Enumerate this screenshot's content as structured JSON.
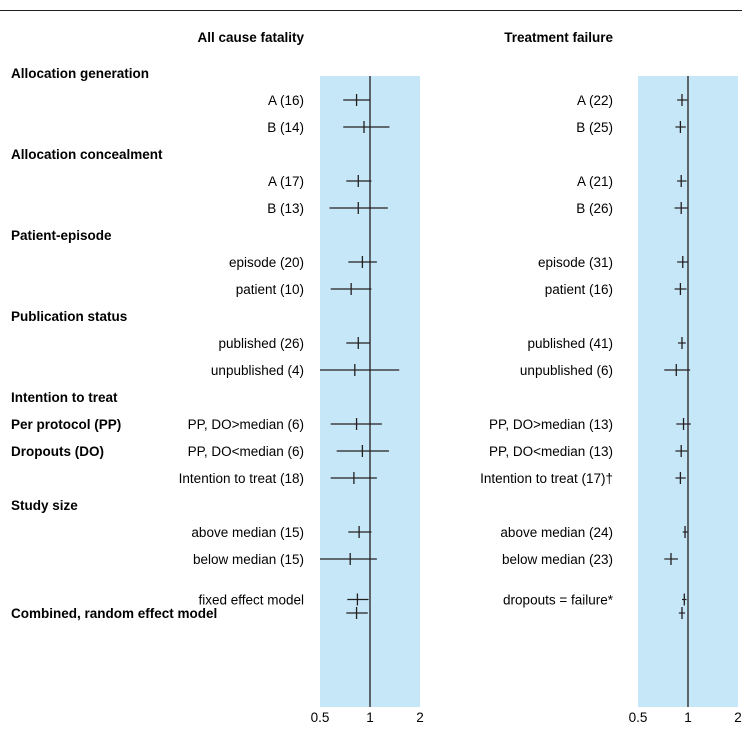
{
  "colors": {
    "band": "#c6e7f7",
    "ink": "#231f20",
    "rule": "#231f20"
  },
  "headers": {
    "left": "All cause fatality",
    "right": "Treatment failure"
  },
  "groups": [
    {
      "label": "Allocation generation",
      "row": 0
    },
    {
      "label": "Allocation concealment",
      "row": 3
    },
    {
      "label": "Patient-episode",
      "row": 6
    },
    {
      "label": "Publication status",
      "row": 9
    },
    {
      "label": "Intention to treat",
      "row": 12
    },
    {
      "label": "Per protocol (PP)",
      "row": 13
    },
    {
      "label": "Dropouts (DO)",
      "row": 14
    },
    {
      "label": "Study size",
      "row": 16
    },
    {
      "label": "Combined, random effect model",
      "row": 20
    }
  ],
  "chart_data": [
    {
      "type": "forest",
      "title": "All cause fatality",
      "x_scale": "log",
      "xlim": [
        0.5,
        2
      ],
      "x_ticks": [
        "0.5",
        "1",
        "2"
      ],
      "reference_line": 1,
      "rows": [
        {
          "row": 1,
          "label": "A (16)",
          "estimate": 0.83,
          "lower": 0.69,
          "upper": 1.0
        },
        {
          "row": 2,
          "label": "B (14)",
          "estimate": 0.92,
          "lower": 0.69,
          "upper": 1.31
        },
        {
          "row": 4,
          "label": "A (17)",
          "estimate": 0.85,
          "lower": 0.72,
          "upper": 1.02
        },
        {
          "row": 5,
          "label": "B (13)",
          "estimate": 0.85,
          "lower": 0.57,
          "upper": 1.28
        },
        {
          "row": 7,
          "label": "episode (20)",
          "estimate": 0.9,
          "lower": 0.74,
          "upper": 1.1
        },
        {
          "row": 8,
          "label": "patient (10)",
          "estimate": 0.77,
          "lower": 0.58,
          "upper": 1.02
        },
        {
          "row": 10,
          "label": "published (26)",
          "estimate": 0.85,
          "lower": 0.72,
          "upper": 1.0
        },
        {
          "row": 11,
          "label": "unpublished (4)",
          "estimate": 0.81,
          "lower": 0.5,
          "upper": 1.5
        },
        {
          "row": 13,
          "label": "PP, DO>median (6)",
          "estimate": 0.83,
          "lower": 0.58,
          "upper": 1.18
        },
        {
          "row": 14,
          "label": "PP, DO<median (6)",
          "estimate": 0.9,
          "lower": 0.63,
          "upper": 1.3
        },
        {
          "row": 15,
          "label": "Intention to treat (18)",
          "estimate": 0.8,
          "lower": 0.58,
          "upper": 1.1
        },
        {
          "row": 17,
          "label": "above median (15)",
          "estimate": 0.86,
          "lower": 0.74,
          "upper": 1.02
        },
        {
          "row": 18,
          "label": "below median (15)",
          "estimate": 0.76,
          "lower": 0.5,
          "upper": 1.1
        },
        {
          "row": 19.5,
          "label": "fixed effect model",
          "estimate": 0.84,
          "lower": 0.73,
          "upper": 0.98
        },
        {
          "row": 20,
          "label": "",
          "estimate": 0.83,
          "lower": 0.72,
          "upper": 0.97
        }
      ]
    },
    {
      "type": "forest",
      "title": "Treatment failure",
      "x_scale": "log",
      "xlim": [
        0.5,
        2
      ],
      "x_ticks": [
        "0.5",
        "1",
        "2"
      ],
      "reference_line": 1,
      "rows": [
        {
          "row": 1,
          "label": "A (22)",
          "estimate": 0.92,
          "lower": 0.86,
          "upper": 0.99
        },
        {
          "row": 2,
          "label": "B (25)",
          "estimate": 0.9,
          "lower": 0.84,
          "upper": 0.97
        },
        {
          "row": 4,
          "label": "A (21)",
          "estimate": 0.91,
          "lower": 0.86,
          "upper": 0.98
        },
        {
          "row": 5,
          "label": "B (26)",
          "estimate": 0.91,
          "lower": 0.83,
          "upper": 1.0
        },
        {
          "row": 7,
          "label": "episode (31)",
          "estimate": 0.93,
          "lower": 0.86,
          "upper": 1.0
        },
        {
          "row": 8,
          "label": "patient (16)",
          "estimate": 0.9,
          "lower": 0.83,
          "upper": 0.98
        },
        {
          "row": 10,
          "label": "published (41)",
          "estimate": 0.92,
          "lower": 0.87,
          "upper": 0.97
        },
        {
          "row": 11,
          "label": "unpublished (6)",
          "estimate": 0.85,
          "lower": 0.72,
          "upper": 1.03
        },
        {
          "row": 13,
          "label": "PP, DO>median (13)",
          "estimate": 0.94,
          "lower": 0.85,
          "upper": 1.04
        },
        {
          "row": 14,
          "label": "PP, DO<median (13)",
          "estimate": 0.91,
          "lower": 0.84,
          "upper": 0.99
        },
        {
          "row": 15,
          "label": "Intention to treat (17)†",
          "estimate": 0.9,
          "lower": 0.84,
          "upper": 0.97
        },
        {
          "row": 17,
          "label": "above median (24)",
          "estimate": 0.96,
          "lower": 0.93,
          "upper": 1.0
        },
        {
          "row": 18,
          "label": "below median (23)",
          "estimate": 0.79,
          "lower": 0.72,
          "upper": 0.87
        },
        {
          "row": 19.5,
          "label": "dropouts = failure*",
          "estimate": 0.95,
          "lower": 0.92,
          "upper": 0.98
        },
        {
          "row": 20,
          "label": "",
          "estimate": 0.92,
          "lower": 0.88,
          "upper": 0.96
        }
      ]
    }
  ]
}
